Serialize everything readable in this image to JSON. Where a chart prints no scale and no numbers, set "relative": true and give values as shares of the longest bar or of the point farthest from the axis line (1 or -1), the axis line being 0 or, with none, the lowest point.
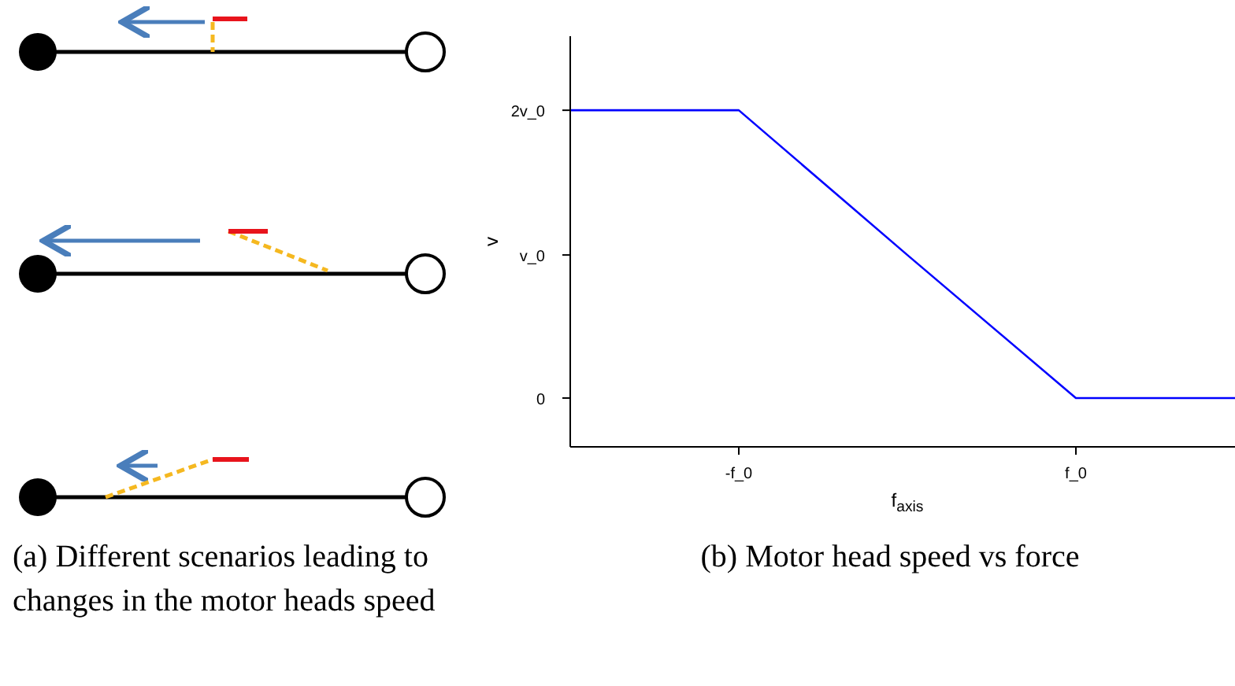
{
  "chart_data": {
    "type": "line",
    "xlabel": "f$_{axis}$",
    "ylabel": "v",
    "relative": true,
    "categories": [
      null,
      "-f_0",
      null,
      "f_0",
      null
    ],
    "series": [
      {
        "color": "#0000ff",
        "values": [
          1,
          1,
          0.57,
          0.145,
          0.145
        ]
      }
    ],
    "marker": "none",
    "annotations": [
      "2v_0",
      "v_0",
      "0",
      "(a) Different scenarios leading to changes in the motor heads speed",
      "(b) Motor head speed vs force"
    ]
  }
}
